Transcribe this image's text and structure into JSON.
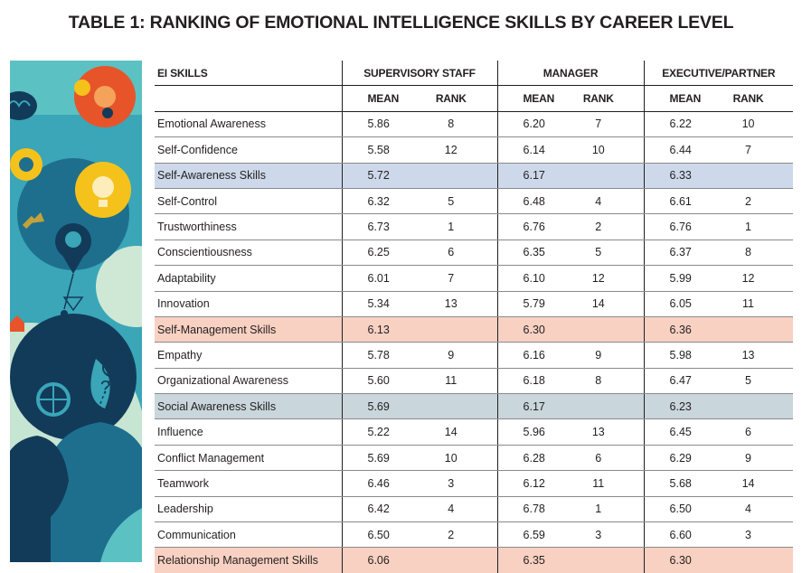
{
  "title": "TABLE 1: RANKING OF EMOTIONAL INTELLIGENCE SKILLS BY CAREER LEVEL",
  "table": {
    "skill_header": "EI SKILLS",
    "groups": [
      "SUPERVISORY STAFF",
      "MANAGER",
      "EXECUTIVE/PARTNER"
    ],
    "mean_label": "MEAN",
    "rank_label": "RANK",
    "rows": [
      {
        "skill": "Emotional Awareness",
        "type": "skill",
        "sup_mean": "5.86",
        "sup_rank": "8",
        "mgr_mean": "6.20",
        "mgr_rank": "7",
        "exe_mean": "6.22",
        "exe_rank": "10"
      },
      {
        "skill": "Self-Confidence",
        "type": "skill",
        "sup_mean": "5.58",
        "sup_rank": "12",
        "mgr_mean": "6.14",
        "mgr_rank": "10",
        "exe_mean": "6.44",
        "exe_rank": "7"
      },
      {
        "skill": "Self-Awareness Skills",
        "type": "summary",
        "color": "#cdd9ea",
        "sup_mean": "5.72",
        "sup_rank": "",
        "mgr_mean": "6.17",
        "mgr_rank": "",
        "exe_mean": "6.33",
        "exe_rank": ""
      },
      {
        "skill": "Self-Control",
        "type": "skill",
        "sup_mean": "6.32",
        "sup_rank": "5",
        "mgr_mean": "6.48",
        "mgr_rank": "4",
        "exe_mean": "6.61",
        "exe_rank": "2"
      },
      {
        "skill": "Trustworthiness",
        "type": "skill",
        "sup_mean": "6.73",
        "sup_rank": "1",
        "mgr_mean": "6.76",
        "mgr_rank": "2",
        "exe_mean": "6.76",
        "exe_rank": "1"
      },
      {
        "skill": "Conscientiousness",
        "type": "skill",
        "sup_mean": "6.25",
        "sup_rank": "6",
        "mgr_mean": "6.35",
        "mgr_rank": "5",
        "exe_mean": "6.37",
        "exe_rank": "8"
      },
      {
        "skill": "Adaptability",
        "type": "skill",
        "sup_mean": "6.01",
        "sup_rank": "7",
        "mgr_mean": "6.10",
        "mgr_rank": "12",
        "exe_mean": "5.99",
        "exe_rank": "12"
      },
      {
        "skill": "Innovation",
        "type": "skill",
        "sup_mean": "5.34",
        "sup_rank": "13",
        "mgr_mean": "5.79",
        "mgr_rank": "14",
        "exe_mean": "6.05",
        "exe_rank": "11"
      },
      {
        "skill": "Self-Management Skills",
        "type": "summary",
        "color": "#f8d1c3",
        "sup_mean": "6.13",
        "sup_rank": "",
        "mgr_mean": "6.30",
        "mgr_rank": "",
        "exe_mean": "6.36",
        "exe_rank": ""
      },
      {
        "skill": "Empathy",
        "type": "skill",
        "sup_mean": "5.78",
        "sup_rank": "9",
        "mgr_mean": "6.16",
        "mgr_rank": "9",
        "exe_mean": "5.98",
        "exe_rank": "13"
      },
      {
        "skill": "Organizational Awareness",
        "type": "skill",
        "sup_mean": "5.60",
        "sup_rank": "11",
        "mgr_mean": "6.18",
        "mgr_rank": "8",
        "exe_mean": "6.47",
        "exe_rank": "5"
      },
      {
        "skill": "Social Awareness Skills",
        "type": "summary",
        "color": "#c9d6dc",
        "sup_mean": "5.69",
        "sup_rank": "",
        "mgr_mean": "6.17",
        "mgr_rank": "",
        "exe_mean": "6.23",
        "exe_rank": ""
      },
      {
        "skill": "Influence",
        "type": "skill",
        "sup_mean": "5.22",
        "sup_rank": "14",
        "mgr_mean": "5.96",
        "mgr_rank": "13",
        "exe_mean": "6.45",
        "exe_rank": "6"
      },
      {
        "skill": "Conflict Management",
        "type": "skill",
        "sup_mean": "5.69",
        "sup_rank": "10",
        "mgr_mean": "6.28",
        "mgr_rank": "6",
        "exe_mean": "6.29",
        "exe_rank": "9"
      },
      {
        "skill": "Teamwork",
        "type": "skill",
        "sup_mean": "6.46",
        "sup_rank": "3",
        "mgr_mean": "6.12",
        "mgr_rank": "11",
        "exe_mean": "5.68",
        "exe_rank": "14"
      },
      {
        "skill": "Leadership",
        "type": "skill",
        "sup_mean": "6.42",
        "sup_rank": "4",
        "mgr_mean": "6.78",
        "mgr_rank": "1",
        "exe_mean": "6.50",
        "exe_rank": "4"
      },
      {
        "skill": "Communication",
        "type": "skill",
        "sup_mean": "6.50",
        "sup_rank": "2",
        "mgr_mean": "6.59",
        "mgr_rank": "3",
        "exe_mean": "6.60",
        "exe_rank": "3"
      },
      {
        "skill": "Relationship Management Skills",
        "type": "summary",
        "color": "#f8d1c3",
        "sup_mean": "6.06",
        "sup_rank": "",
        "mgr_mean": "6.35",
        "mgr_rank": "",
        "exe_mean": "6.30",
        "exe_rank": ""
      }
    ]
  },
  "illustration": {
    "icons": [
      "brain-icon",
      "gear-icon",
      "lightbulb-icon",
      "location-pin-icon",
      "question-mark-icon",
      "wheel-icon",
      "arrow-icon",
      "person-silhouette-icon"
    ],
    "colors": {
      "background": "#3aa6b8",
      "orange": "#e8542a",
      "yellow": "#f5c21b",
      "navy": "#123b5a",
      "light": "#d7ecd6"
    }
  }
}
